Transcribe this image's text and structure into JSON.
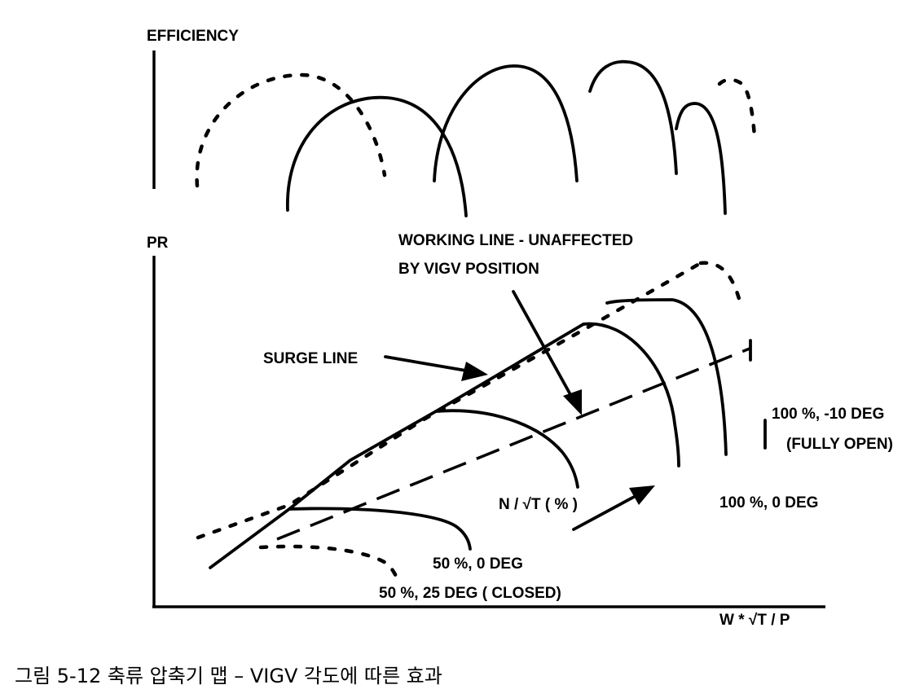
{
  "efficiency_label": "EFFICIENCY",
  "pr_label": "PR",
  "x_axis_label": "W * √T / P",
  "working_line_label_1": "WORKING LINE - UNAFFECTED",
  "working_line_label_2": "BY VIGV POSITION",
  "surge_line_label": "SURGE LINE",
  "speed_label": "N / √T ( % )",
  "curve_labels": {
    "c50_0": "50 %,  0 DEG",
    "c50_25": "50 %,  25 DEG ( CLOSED)",
    "c100_0": "100 %,  0 DEG",
    "c100_m10_1": "100 %, -10 DEG",
    "c100_m10_2": "(FULLY OPEN)"
  },
  "caption": "그림 5-12 축류 압축기 맵 – VIGV 각도에 따른 효과"
}
